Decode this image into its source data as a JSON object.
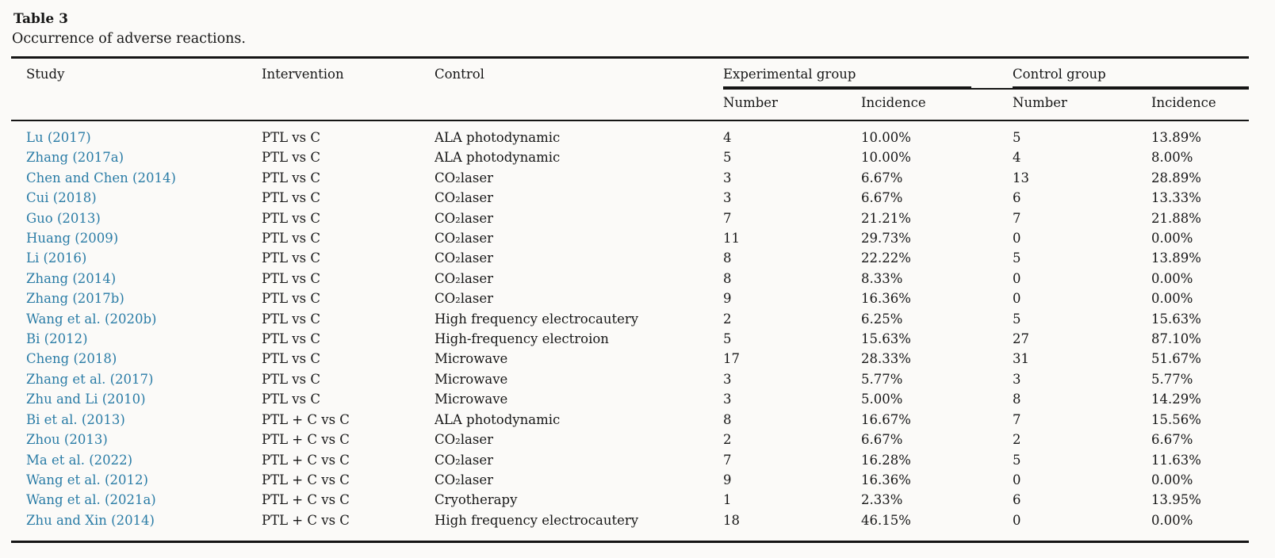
{
  "table": {
    "label": "Table 3",
    "caption": "Occurrence of adverse reactions.",
    "link_color": "#2a7ca6",
    "columns": {
      "study": "Study",
      "intervention": "Intervention",
      "control": "Control",
      "experimental_group": "Experimental group",
      "control_group": "Control group",
      "number": "Number",
      "incidence": "Incidence"
    },
    "rows": [
      {
        "study": "Lu (2017)",
        "intervention": "PTL vs C",
        "control": "ALA photodynamic",
        "exp_number": "4",
        "exp_incidence": "10.00%",
        "ctrl_number": "5",
        "ctrl_incidence": "13.89%"
      },
      {
        "study": "Zhang (2017a)",
        "intervention": "PTL vs C",
        "control": "ALA photodynamic",
        "exp_number": "5",
        "exp_incidence": "10.00%",
        "ctrl_number": "4",
        "ctrl_incidence": "8.00%"
      },
      {
        "study": "Chen and Chen (2014)",
        "intervention": "PTL vs C",
        "control": "CO₂laser",
        "exp_number": "3",
        "exp_incidence": "6.67%",
        "ctrl_number": "13",
        "ctrl_incidence": "28.89%"
      },
      {
        "study": "Cui (2018)",
        "intervention": "PTL vs C",
        "control": "CO₂laser",
        "exp_number": "3",
        "exp_incidence": "6.67%",
        "ctrl_number": "6",
        "ctrl_incidence": "13.33%"
      },
      {
        "study": "Guo (2013)",
        "intervention": "PTL vs C",
        "control": "CO₂laser",
        "exp_number": "7",
        "exp_incidence": "21.21%",
        "ctrl_number": "7",
        "ctrl_incidence": "21.88%"
      },
      {
        "study": "Huang (2009)",
        "intervention": "PTL vs C",
        "control": "CO₂laser",
        "exp_number": "11",
        "exp_incidence": "29.73%",
        "ctrl_number": "0",
        "ctrl_incidence": "0.00%"
      },
      {
        "study": "Li (2016)",
        "intervention": "PTL vs C",
        "control": "CO₂laser",
        "exp_number": "8",
        "exp_incidence": "22.22%",
        "ctrl_number": "5",
        "ctrl_incidence": "13.89%"
      },
      {
        "study": "Zhang (2014)",
        "intervention": "PTL vs C",
        "control": "CO₂laser",
        "exp_number": "8",
        "exp_incidence": "8.33%",
        "ctrl_number": "0",
        "ctrl_incidence": "0.00%"
      },
      {
        "study": "Zhang (2017b)",
        "intervention": "PTL vs C",
        "control": "CO₂laser",
        "exp_number": "9",
        "exp_incidence": "16.36%",
        "ctrl_number": "0",
        "ctrl_incidence": "0.00%"
      },
      {
        "study": "Wang et al. (2020b)",
        "intervention": "PTL vs C",
        "control": "High frequency electrocautery",
        "exp_number": "2",
        "exp_incidence": "6.25%",
        "ctrl_number": "5",
        "ctrl_incidence": "15.63%"
      },
      {
        "study": "Bi (2012)",
        "intervention": "PTL vs C",
        "control": "High-frequency electroion",
        "exp_number": "5",
        "exp_incidence": "15.63%",
        "ctrl_number": "27",
        "ctrl_incidence": "87.10%"
      },
      {
        "study": "Cheng (2018)",
        "intervention": "PTL vs C",
        "control": "Microwave",
        "exp_number": "17",
        "exp_incidence": "28.33%",
        "ctrl_number": "31",
        "ctrl_incidence": "51.67%"
      },
      {
        "study": "Zhang et al. (2017)",
        "intervention": "PTL vs C",
        "control": "Microwave",
        "exp_number": "3",
        "exp_incidence": "5.77%",
        "ctrl_number": "3",
        "ctrl_incidence": "5.77%"
      },
      {
        "study": "Zhu and Li (2010)",
        "intervention": "PTL vs C",
        "control": "Microwave",
        "exp_number": "3",
        "exp_incidence": "5.00%",
        "ctrl_number": "8",
        "ctrl_incidence": "14.29%"
      },
      {
        "study": "Bi et al. (2013)",
        "intervention": "PTL + C vs C",
        "control": "ALA photodynamic",
        "exp_number": "8",
        "exp_incidence": "16.67%",
        "ctrl_number": "7",
        "ctrl_incidence": "15.56%"
      },
      {
        "study": "Zhou (2013)",
        "intervention": "PTL + C vs C",
        "control": "CO₂laser",
        "exp_number": "2",
        "exp_incidence": "6.67%",
        "ctrl_number": "2",
        "ctrl_incidence": "6.67%"
      },
      {
        "study": "Ma et al. (2022)",
        "intervention": "PTL + C vs C",
        "control": "CO₂laser",
        "exp_number": "7",
        "exp_incidence": "16.28%",
        "ctrl_number": "5",
        "ctrl_incidence": "11.63%"
      },
      {
        "study": "Wang et al. (2012)",
        "intervention": "PTL + C vs C",
        "control": "CO₂laser",
        "exp_number": "9",
        "exp_incidence": "16.36%",
        "ctrl_number": "0",
        "ctrl_incidence": "0.00%"
      },
      {
        "study": "Wang et al. (2021a)",
        "intervention": "PTL + C vs C",
        "control": "Cryotherapy",
        "exp_number": "1",
        "exp_incidence": "2.33%",
        "ctrl_number": "6",
        "ctrl_incidence": "13.95%"
      },
      {
        "study": "Zhu and Xin (2014)",
        "intervention": "PTL + C vs C",
        "control": "High frequency electrocautery",
        "exp_number": "18",
        "exp_incidence": "46.15%",
        "ctrl_number": "0",
        "ctrl_incidence": "0.00%"
      }
    ]
  }
}
